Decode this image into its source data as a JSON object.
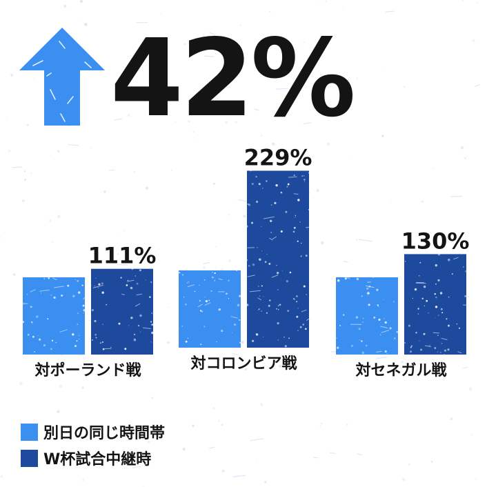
{
  "headline": {
    "value": "42%",
    "direction": "up",
    "arrow_color": "#3b8ff0"
  },
  "chart_data": {
    "type": "bar",
    "categories": [
      "対ポーランド戦",
      "対コロンビア戦",
      "対セネガル戦"
    ],
    "series": [
      {
        "name": "別日の同じ時間帯",
        "values": [
          100,
          100,
          100
        ],
        "color": "#3b8ff0"
      },
      {
        "name": "W杯試合中継時",
        "values": [
          111,
          229,
          130
        ],
        "color": "#1d4a9c"
      }
    ],
    "data_labels": [
      "111%",
      "229%",
      "130%"
    ],
    "ylim": [
      0,
      229
    ],
    "grid": false,
    "legend": "bottom-left"
  },
  "colors": {
    "light_bar": "#3b8ff0",
    "dark_bar": "#1d4a9c",
    "text": "#141414",
    "background": "#ffffff"
  }
}
